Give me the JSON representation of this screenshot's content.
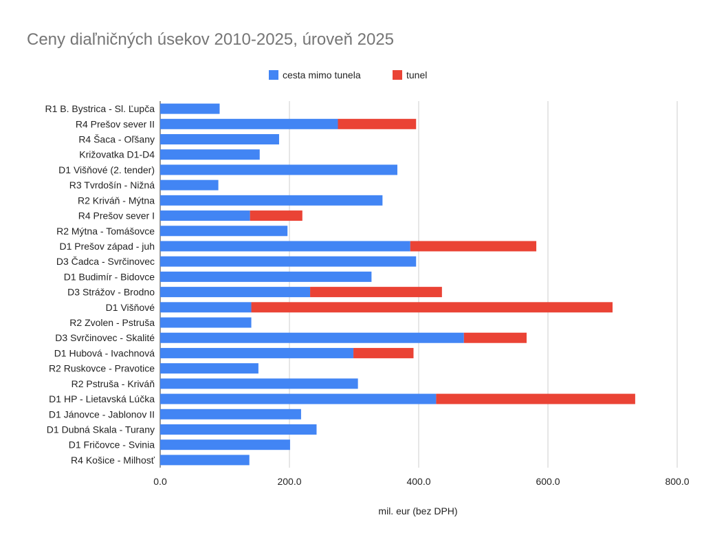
{
  "chart_data": {
    "type": "bar",
    "orientation": "horizontal",
    "stacked": true,
    "title": "Ceny diaľničných úsekov 2010-2025, úroveň 2025",
    "xlabel": "mil. eur (bez DPH)",
    "ylabel": "",
    "xlim": [
      0,
      800
    ],
    "xticks": [
      0,
      200,
      400,
      600,
      800
    ],
    "xtick_labels": [
      "0.0",
      "200.0",
      "400.0",
      "600.0",
      "800.0"
    ],
    "grid": "vertical",
    "legend_position": "top-center",
    "categories": [
      "R1 B. Bystrica - Sl. Ľupča",
      "R4 Prešov sever II",
      "R4 Šaca - Oľšany",
      "Križovatka D1-D4",
      "D1 Višňové (2. tender)",
      "R3 Tvrdošín - Nižná",
      "R2 Kriváň - Mýtna",
      "R4 Prešov sever I",
      "R2 Mýtna - Tomášovce",
      "D1 Prešov západ - juh",
      "D3 Čadca - Svrčinovec",
      "D1 Budimír - Bidovce",
      "D3 Strážov - Brodno",
      "D1 Višňové",
      "R2 Zvolen - Pstruša",
      "D3 Svrčinovec - Skalité",
      "D1 Hubová - Ivachnová",
      "R2 Ruskovce - Pravotice",
      "R2 Pstruša - Kriváň",
      "D1 HP - Lietavská Lúčka",
      "D1 Jánovce - Jablonov II",
      "D1 Dubná Skala - Turany",
      "D1 Fričovce - Svinia",
      "R4 Košice - Milhosť"
    ],
    "series": [
      {
        "name": "cesta mimo tunela",
        "color": "#4285f4",
        "values": [
          92,
          275,
          184,
          154,
          367,
          90,
          344,
          139,
          197,
          387,
          396,
          327,
          232,
          141,
          141,
          470,
          299,
          152,
          306,
          427,
          218,
          242,
          201,
          138
        ]
      },
      {
        "name": "tunel",
        "color": "#ea4335",
        "values": [
          0,
          121,
          0,
          0,
          0,
          0,
          0,
          81,
          0,
          195,
          0,
          0,
          204,
          559,
          0,
          97,
          93,
          0,
          0,
          308,
          0,
          0,
          0,
          0
        ]
      }
    ]
  }
}
